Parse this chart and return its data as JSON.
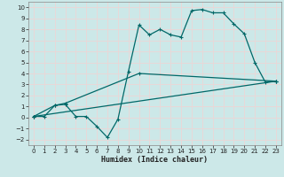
{
  "xlabel": "Humidex (Indice chaleur)",
  "background_color": "#cce8e8",
  "grid_color": "#e8d8d8",
  "line_color": "#006868",
  "xlim": [
    -0.5,
    23.5
  ],
  "ylim": [
    -2.5,
    10.5
  ],
  "xticks": [
    0,
    1,
    2,
    3,
    4,
    5,
    6,
    7,
    8,
    9,
    10,
    11,
    12,
    13,
    14,
    15,
    16,
    17,
    18,
    19,
    20,
    21,
    22,
    23
  ],
  "yticks": [
    -2,
    -1,
    0,
    1,
    2,
    3,
    4,
    5,
    6,
    7,
    8,
    9,
    10
  ],
  "line1_x": [
    0,
    1,
    2,
    3,
    4,
    5,
    6,
    7,
    8,
    9,
    10,
    11,
    12,
    13,
    14,
    15,
    16,
    17,
    18,
    19,
    20,
    21,
    22,
    23
  ],
  "line1_y": [
    0.1,
    0.1,
    1.1,
    1.2,
    0.1,
    0.1,
    -0.8,
    -1.8,
    -0.15,
    4.2,
    8.4,
    7.5,
    8.0,
    7.5,
    7.3,
    9.7,
    9.8,
    9.5,
    9.5,
    8.5,
    7.6,
    5.0,
    3.2,
    3.3
  ],
  "line2_x": [
    0,
    23
  ],
  "line2_y": [
    0.1,
    3.3
  ],
  "line3_x": [
    0,
    2,
    3,
    10,
    23
  ],
  "line3_y": [
    0.1,
    1.1,
    1.3,
    4.0,
    3.3
  ]
}
